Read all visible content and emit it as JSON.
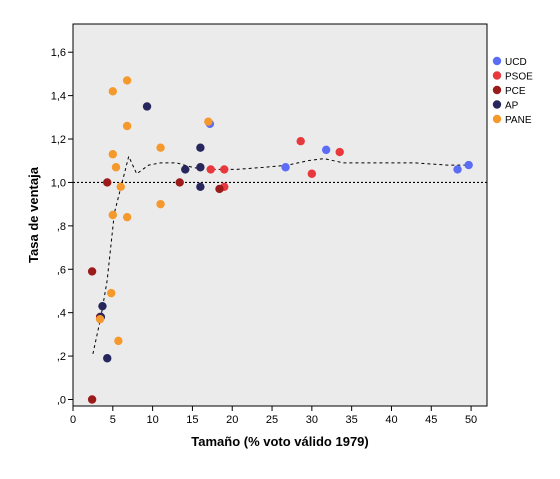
{
  "chart_data": {
    "type": "scatter",
    "title": "",
    "xlabel": "Tamaño (% voto válido 1979)",
    "ylabel": "Tasa de ventaja",
    "xlim": [
      0,
      52
    ],
    "ylim": [
      -0.03,
      1.73
    ],
    "x_ticks": [
      0,
      5,
      10,
      15,
      20,
      25,
      30,
      35,
      40,
      45,
      50
    ],
    "x_tick_labels": [
      "0",
      "5",
      "10",
      "15",
      "20",
      "25",
      "30",
      "35",
      "40",
      "45",
      "50"
    ],
    "y_ticks": [
      0,
      0.2,
      0.4,
      0.6,
      0.8,
      1.0,
      1.2,
      1.4,
      1.6
    ],
    "y_tick_labels": [
      ",0",
      ",2",
      ",4",
      ",6",
      ",8",
      "1,0",
      "1,2",
      "1,4",
      "1,6"
    ],
    "grid": false,
    "legend_position": "top-right outside",
    "reference_line": {
      "y": 1.0,
      "style": "dotted"
    },
    "series": [
      {
        "name": "UCD",
        "color": "#5b6cf5",
        "points": [
          [
            17.2,
            1.27
          ],
          [
            26.7,
            1.07
          ],
          [
            31.8,
            1.15
          ],
          [
            48.3,
            1.06
          ],
          [
            49.7,
            1.08
          ]
        ]
      },
      {
        "name": "PSOE",
        "color": "#e8383d",
        "points": [
          [
            17.3,
            1.06
          ],
          [
            19.0,
            0.98
          ],
          [
            19.0,
            1.06
          ],
          [
            28.6,
            1.19
          ],
          [
            30.0,
            1.04
          ],
          [
            33.5,
            1.14
          ]
        ]
      },
      {
        "name": "PCE",
        "color": "#9b1b1b",
        "points": [
          [
            2.4,
            0.0
          ],
          [
            2.4,
            0.59
          ],
          [
            3.4,
            0.38
          ],
          [
            4.3,
            1.0
          ],
          [
            13.4,
            1.0
          ],
          [
            18.4,
            0.97
          ]
        ]
      },
      {
        "name": "AP",
        "color": "#27275e",
        "points": [
          [
            3.5,
            0.38
          ],
          [
            3.7,
            0.43
          ],
          [
            4.3,
            0.19
          ],
          [
            9.3,
            1.35
          ],
          [
            14.1,
            1.06
          ],
          [
            16.0,
            1.16
          ],
          [
            16.0,
            1.07
          ],
          [
            16.0,
            0.98
          ]
        ]
      },
      {
        "name": "PANE",
        "color": "#f5992c",
        "points": [
          [
            3.4,
            0.37
          ],
          [
            4.8,
            0.49
          ],
          [
            5.0,
            1.42
          ],
          [
            5.0,
            1.13
          ],
          [
            5.0,
            0.85
          ],
          [
            5.4,
            1.07
          ],
          [
            5.7,
            0.27
          ],
          [
            6.0,
            0.98
          ],
          [
            6.8,
            1.47
          ],
          [
            6.8,
            1.26
          ],
          [
            6.8,
            0.84
          ],
          [
            11.0,
            1.16
          ],
          [
            11.0,
            0.9
          ],
          [
            17.0,
            1.28
          ]
        ]
      }
    ],
    "fit_line": {
      "style": "dashed",
      "points": [
        [
          2.5,
          0.21
        ],
        [
          3.5,
          0.38
        ],
        [
          4.3,
          0.55
        ],
        [
          5.2,
          0.86
        ],
        [
          6.1,
          0.99
        ],
        [
          7.0,
          1.12
        ],
        [
          8.0,
          1.04
        ],
        [
          9.5,
          1.08
        ],
        [
          11.0,
          1.09
        ],
        [
          13.0,
          1.09
        ],
        [
          15.0,
          1.07
        ],
        [
          16.5,
          1.06
        ],
        [
          18.5,
          1.06
        ],
        [
          20.5,
          1.06
        ],
        [
          24.0,
          1.07
        ],
        [
          27.0,
          1.08
        ],
        [
          29.5,
          1.1
        ],
        [
          31.5,
          1.11
        ],
        [
          34.0,
          1.09
        ],
        [
          38.0,
          1.09
        ],
        [
          43.0,
          1.09
        ],
        [
          47.0,
          1.08
        ],
        [
          49.7,
          1.08
        ]
      ]
    }
  }
}
